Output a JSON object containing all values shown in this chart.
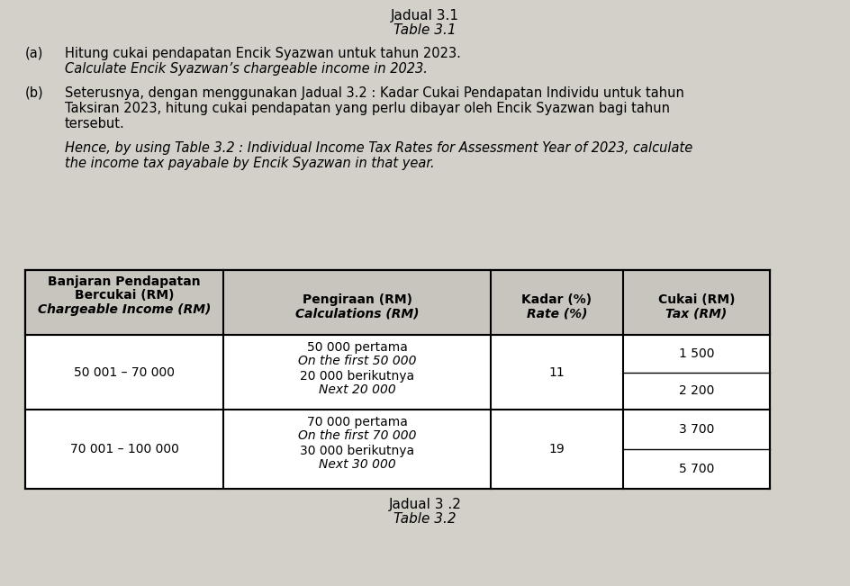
{
  "title1": "Jadual 3.1",
  "title2": "Table 3.1",
  "part_a_label": "(a)",
  "part_a_malay": "Hitung cukai pendapatan Encik Syazwan untuk tahun 2023.",
  "part_a_english": "Calculate Encik Syazwan’s chargeable income in 2023.",
  "part_b_label": "(b)",
  "part_b_malay_lines": [
    "Seterusnya, dengan menggunakan Jadual 3.2 : Kadar Cukai Pendapatan Individu untuk tahun",
    "Taksiran 2023, hitung cukai pendapatan yang perlu dibayar oleh Encik Syazwan bagi tahun",
    "tersebut."
  ],
  "part_b_english_lines": [
    "Hence, by using Table 3.2 : Individual Income Tax Rates for Assessment Year of 2023, calculate",
    "the income tax payabale by Encik Syazwan in that year."
  ],
  "col1_header_line1": "Banjaran Pendapatan",
  "col1_header_line2": "Bercukai (RM)",
  "col1_header_line3": "Chargeable Income (RM)",
  "col2_header_line1": "Pengiraan (RM)",
  "col2_header_line2": "Calculations (RM)",
  "col3_header_line1": "Kadar (%)",
  "col3_header_line2": "Rate (%)",
  "col4_header_line1": "Cukai (RM)",
  "col4_header_line2": "Tax (RM)",
  "row1_col1": "50 001 – 70 000",
  "row1_col2_line1": "50 000 pertama",
  "row1_col2_line2": "On the first 50 000",
  "row1_col2_line3": "20 000 berikutnya",
  "row1_col2_line4": "Next 20 000",
  "row1_col3": "11",
  "row1_col4_line1": "1 500",
  "row1_col4_line2": "2 200",
  "row2_col1": "70 001 – 100 000",
  "row2_col2_line1": "70 000 pertama",
  "row2_col2_line2": "On the first 70 000",
  "row2_col2_line3": "30 000 berikutnya",
  "row2_col2_line4": "Next 30 000",
  "row2_col3": "19",
  "row2_col4_line1": "3 700",
  "row2_col4_line2": "5 700",
  "footer1": "Jadual 3 .2",
  "footer2": "Table 3.2",
  "bg_color": "#d3cfc9",
  "table_bg": "#ffffff",
  "header_bg": "#c8c4be",
  "text_color": "#000000",
  "border_color": "#000000"
}
